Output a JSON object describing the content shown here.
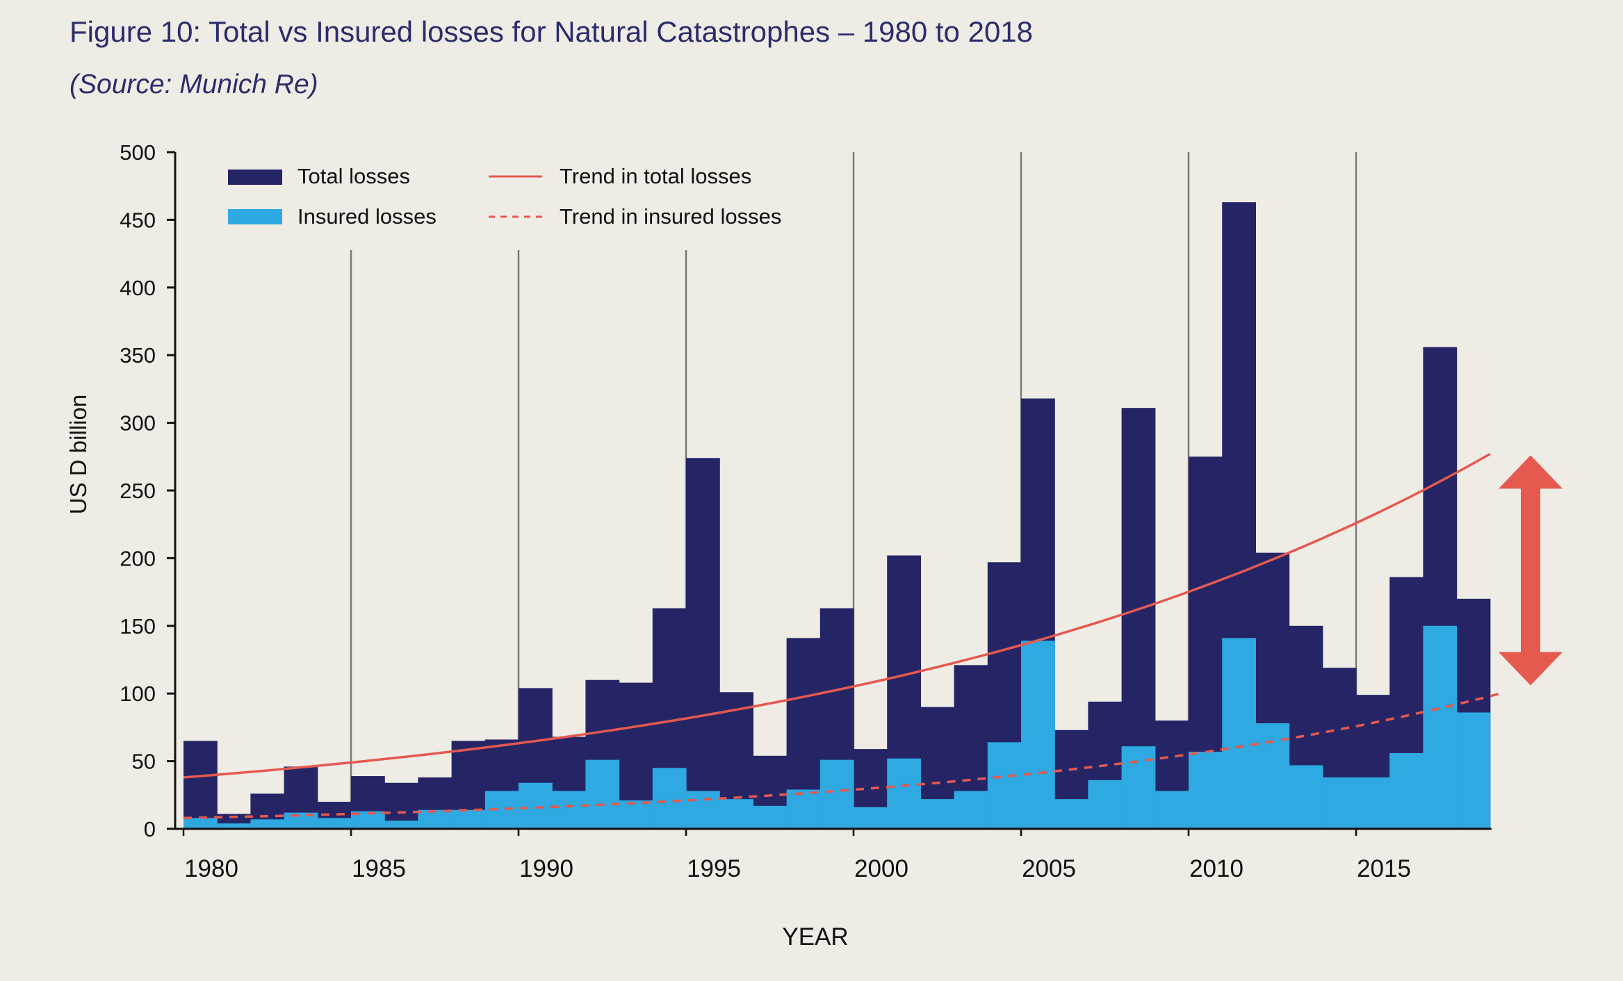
{
  "title": "Figure 10: Total vs Insured losses for Natural Catastrophes – 1980 to 2018",
  "subtitle": "(Source: Munich Re)",
  "colors": {
    "background": "#efece5",
    "total": "#252566",
    "insured": "#2ea9e1",
    "trend": "#e5594f",
    "gridline": "#7a7a7a",
    "axis": "#111111",
    "title": "#2c2c6c"
  },
  "chart_data": {
    "type": "bar",
    "xlabel": "YEAR",
    "ylabel": "US D billion",
    "ylim": [
      0,
      500
    ],
    "yticks": [
      0,
      50,
      100,
      150,
      200,
      250,
      300,
      350,
      400,
      450,
      500
    ],
    "xticks": [
      1980,
      1985,
      1990,
      1995,
      2000,
      2005,
      2010,
      2015
    ],
    "gridlines_x": [
      1985,
      1990,
      1995,
      2000,
      2005,
      2010,
      2015
    ],
    "legend_position": "top-left",
    "categories": [
      1980,
      1981,
      1982,
      1983,
      1984,
      1985,
      1986,
      1987,
      1988,
      1989,
      1990,
      1991,
      1992,
      1993,
      1994,
      1995,
      1996,
      1997,
      1998,
      1999,
      2000,
      2001,
      2002,
      2003,
      2004,
      2005,
      2006,
      2007,
      2008,
      2009,
      2010,
      2011,
      2012,
      2013,
      2014,
      2015,
      2016,
      2017,
      2018
    ],
    "series": [
      {
        "name": "Total losses",
        "values": [
          65,
          11,
          26,
          46,
          20,
          39,
          34,
          38,
          65,
          66,
          104,
          68,
          110,
          108,
          163,
          274,
          101,
          54,
          141,
          163,
          59,
          202,
          90,
          121,
          197,
          318,
          73,
          94,
          311,
          80,
          275,
          463,
          204,
          150,
          119,
          99,
          186,
          356,
          170
        ]
      },
      {
        "name": "Insured losses",
        "values": [
          8,
          4,
          7,
          12,
          8,
          13,
          6,
          14,
          14,
          28,
          34,
          28,
          51,
          21,
          45,
          28,
          22,
          17,
          29,
          51,
          16,
          52,
          22,
          28,
          64,
          139,
          22,
          36,
          61,
          28,
          57,
          141,
          78,
          47,
          38,
          38,
          56,
          150,
          86
        ]
      }
    ],
    "trend_lines": [
      {
        "name": "Trend in total losses",
        "style": "solid",
        "x": [
          1980,
          2019
        ],
        "y": [
          38,
          277
        ]
      },
      {
        "name": "Trend in insured losses",
        "style": "dashed",
        "x": [
          1980,
          2019.3
        ],
        "y": [
          8,
          100
        ]
      }
    ],
    "annotations": [
      {
        "type": "double-arrow",
        "x": 2020,
        "y_range": [
          106,
          276
        ]
      }
    ]
  }
}
